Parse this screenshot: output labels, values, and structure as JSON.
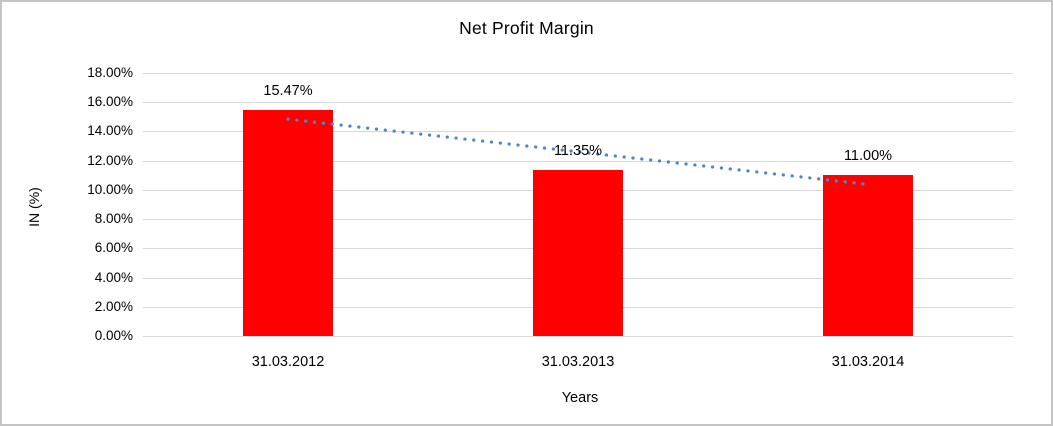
{
  "window": {
    "background": "#FFFFFF",
    "frame_border_color": "#C4C4C4"
  },
  "chart_data": {
    "type": "bar",
    "title": "Net Profit Margin",
    "xlabel": "Years",
    "ylabel": "IN (%)",
    "categories": [
      "31.03.2012",
      "31.03.2013",
      "31.03.2014"
    ],
    "values": [
      15.47,
      11.35,
      11.0
    ],
    "value_labels": [
      "15.47%",
      "11.35%",
      "11.00%"
    ],
    "ylim": [
      0,
      18
    ],
    "ytick_step": 2,
    "ytick_labels": [
      "0.00%",
      "2.00%",
      "4.00%",
      "6.00%",
      "8.00%",
      "10.00%",
      "12.00%",
      "14.00%",
      "16.00%",
      "18.00%"
    ],
    "bar_color": "#FF0000",
    "gridline_color": "#D9D9D9",
    "grid": true,
    "legend": false,
    "trendline": {
      "type": "linear",
      "style": "dotted",
      "color": "#4E86C8"
    }
  }
}
